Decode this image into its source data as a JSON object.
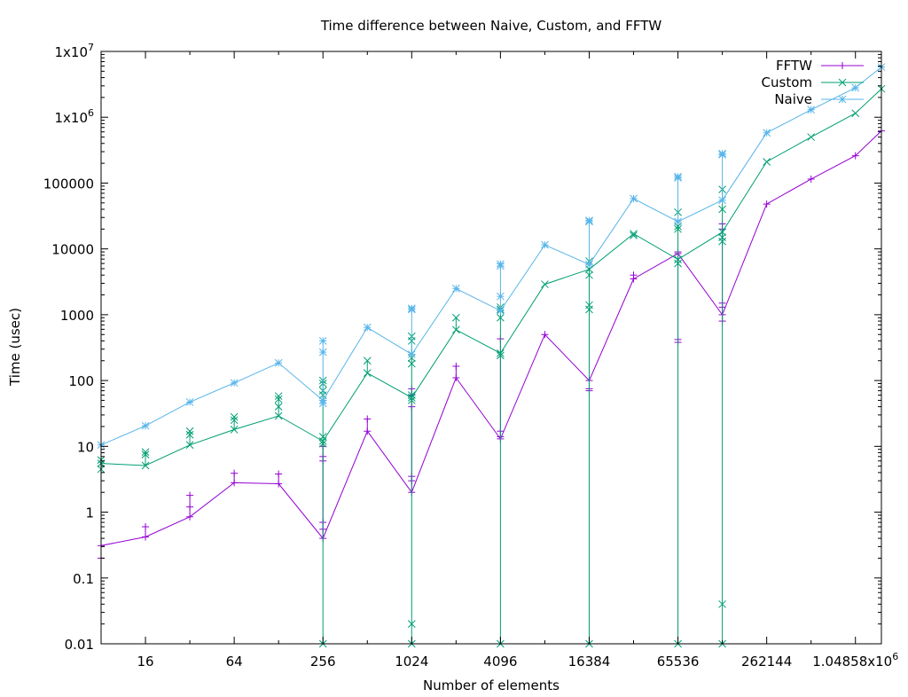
{
  "chart_data": {
    "type": "line",
    "title": "Time difference between Naive, Custom, and FFTW",
    "xlabel": "Number of elements",
    "ylabel": "Time (usec)",
    "x_scale": "log2",
    "y_scale": "log10",
    "xlim": [
      8,
      1572864
    ],
    "ylim": [
      0.01,
      10000000
    ],
    "x_ticks": [
      {
        "value": 16,
        "label": "16"
      },
      {
        "value": 64,
        "label": "64"
      },
      {
        "value": 256,
        "label": "256"
      },
      {
        "value": 1024,
        "label": "1024"
      },
      {
        "value": 4096,
        "label": "4096"
      },
      {
        "value": 16384,
        "label": "16384"
      },
      {
        "value": 65536,
        "label": "65536"
      },
      {
        "value": 262144,
        "label": "262144"
      },
      {
        "value": 1048576,
        "label": "1.04858x10",
        "sup": "6"
      }
    ],
    "y_ticks": [
      {
        "value": 0.01,
        "label": "0.01"
      },
      {
        "value": 0.1,
        "label": "0.1"
      },
      {
        "value": 1,
        "label": "1"
      },
      {
        "value": 10,
        "label": "10"
      },
      {
        "value": 100,
        "label": "100"
      },
      {
        "value": 1000,
        "label": "1000"
      },
      {
        "value": 10000,
        "label": "10000"
      },
      {
        "value": 100000,
        "label": "100000"
      },
      {
        "value": 1000000,
        "label": "1x10",
        "sup": "6"
      },
      {
        "value": 10000000,
        "label": "1x10",
        "sup": "7"
      }
    ],
    "grid": false,
    "legend_position": "top-right",
    "series": [
      {
        "name": "FFTW",
        "color": "#9400d3",
        "marker": "plus",
        "x": [
          8,
          16,
          32,
          64,
          128,
          256,
          512,
          1024,
          2048,
          4096,
          8192,
          16384,
          32768,
          65536,
          131072,
          262144,
          524288,
          1048576,
          1572864
        ],
        "y": [
          0.31,
          0.42,
          0.85,
          2.8,
          2.7,
          0.4,
          17,
          2.0,
          110,
          13,
          500,
          100,
          3500,
          8500,
          1000,
          48000,
          115000,
          260000,
          620000
        ],
        "scatter_points": [
          {
            "x": 8,
            "y": 0.2
          },
          {
            "x": 16,
            "y": 0.6
          },
          {
            "x": 32,
            "y": 1.2
          },
          {
            "x": 32,
            "y": 1.8
          },
          {
            "x": 64,
            "y": 3.9
          },
          {
            "x": 128,
            "y": 3.8
          },
          {
            "x": 256,
            "y": 0.55
          },
          {
            "x": 256,
            "y": 0.7
          },
          {
            "x": 256,
            "y": 6
          },
          {
            "x": 256,
            "y": 7
          },
          {
            "x": 256,
            "y": 10
          },
          {
            "x": 512,
            "y": 26
          },
          {
            "x": 1024,
            "y": 3
          },
          {
            "x": 1024,
            "y": 3.5
          },
          {
            "x": 1024,
            "y": 40
          },
          {
            "x": 1024,
            "y": 60
          },
          {
            "x": 1024,
            "y": 75
          },
          {
            "x": 2048,
            "y": 165
          },
          {
            "x": 4096,
            "y": 14
          },
          {
            "x": 4096,
            "y": 17
          },
          {
            "x": 4096,
            "y": 430
          },
          {
            "x": 16384,
            "y": 70
          },
          {
            "x": 16384,
            "y": 75
          },
          {
            "x": 32768,
            "y": 4000
          },
          {
            "x": 65536,
            "y": 380
          },
          {
            "x": 65536,
            "y": 420
          },
          {
            "x": 65536,
            "y": 9000
          },
          {
            "x": 131072,
            "y": 800
          },
          {
            "x": 131072,
            "y": 1300
          },
          {
            "x": 131072,
            "y": 1500
          },
          {
            "x": 131072,
            "y": 20000
          },
          {
            "x": 131072,
            "y": 24000
          }
        ]
      },
      {
        "name": "Custom",
        "color": "#009e73",
        "marker": "x",
        "x": [
          8,
          16,
          32,
          64,
          128,
          256,
          512,
          1024,
          2048,
          4096,
          8192,
          16384,
          32768,
          65536,
          131072,
          262144,
          524288,
          1048576,
          1572864
        ],
        "y": [
          5.5,
          5.1,
          10.5,
          18,
          29,
          12,
          130,
          55,
          590,
          260,
          2900,
          4900,
          17000,
          6900,
          18000,
          210000,
          500000,
          1150000,
          2700000
        ],
        "scatter_points": [
          {
            "x": 8,
            "y": 4.5
          },
          {
            "x": 8,
            "y": 6.2
          },
          {
            "x": 16,
            "y": 7.5
          },
          {
            "x": 16,
            "y": 8.2
          },
          {
            "x": 32,
            "y": 15
          },
          {
            "x": 32,
            "y": 17
          },
          {
            "x": 64,
            "y": 25
          },
          {
            "x": 64,
            "y": 28
          },
          {
            "x": 128,
            "y": 40
          },
          {
            "x": 128,
            "y": 52
          },
          {
            "x": 128,
            "y": 58
          },
          {
            "x": 256,
            "y": 0.01
          },
          {
            "x": 256,
            "y": 11
          },
          {
            "x": 256,
            "y": 14
          },
          {
            "x": 256,
            "y": 60
          },
          {
            "x": 256,
            "y": 70
          },
          {
            "x": 256,
            "y": 90
          },
          {
            "x": 256,
            "y": 100
          },
          {
            "x": 512,
            "y": 200
          },
          {
            "x": 1024,
            "y": 0.01
          },
          {
            "x": 1024,
            "y": 0.02
          },
          {
            "x": 1024,
            "y": 50
          },
          {
            "x": 1024,
            "y": 60
          },
          {
            "x": 1024,
            "y": 180
          },
          {
            "x": 1024,
            "y": 220
          },
          {
            "x": 1024,
            "y": 400
          },
          {
            "x": 1024,
            "y": 470
          },
          {
            "x": 2048,
            "y": 900
          },
          {
            "x": 4096,
            "y": 0.01
          },
          {
            "x": 4096,
            "y": 240
          },
          {
            "x": 4096,
            "y": 900
          },
          {
            "x": 4096,
            "y": 1200
          },
          {
            "x": 4096,
            "y": 1300
          },
          {
            "x": 16384,
            "y": 0.01
          },
          {
            "x": 16384,
            "y": 1200
          },
          {
            "x": 16384,
            "y": 1400
          },
          {
            "x": 16384,
            "y": 4000
          },
          {
            "x": 16384,
            "y": 6500
          },
          {
            "x": 32768,
            "y": 16000
          },
          {
            "x": 65536,
            "y": 0.01
          },
          {
            "x": 65536,
            "y": 6000
          },
          {
            "x": 65536,
            "y": 20000
          },
          {
            "x": 65536,
            "y": 22000
          },
          {
            "x": 65536,
            "y": 36000
          },
          {
            "x": 131072,
            "y": 0.01
          },
          {
            "x": 131072,
            "y": 0.04
          },
          {
            "x": 131072,
            "y": 13000
          },
          {
            "x": 131072,
            "y": 15000
          },
          {
            "x": 131072,
            "y": 40000
          },
          {
            "x": 131072,
            "y": 80000
          }
        ]
      },
      {
        "name": "Naive",
        "color": "#56b4e9",
        "marker": "star",
        "x": [
          8,
          16,
          32,
          64,
          128,
          256,
          512,
          1024,
          2048,
          4096,
          8192,
          16384,
          32768,
          65536,
          131072,
          262144,
          524288,
          1048576,
          1572864
        ],
        "y": [
          10.5,
          20.5,
          47,
          92,
          185,
          50,
          640,
          250,
          2500,
          1150,
          11500,
          5800,
          58000,
          26000,
          55000,
          580000,
          1300000,
          2800000,
          5800000
        ],
        "scatter_points": [
          {
            "x": 256,
            "y": 45
          },
          {
            "x": 256,
            "y": 270
          },
          {
            "x": 256,
            "y": 400
          },
          {
            "x": 1024,
            "y": 1200
          },
          {
            "x": 1024,
            "y": 1250
          },
          {
            "x": 4096,
            "y": 1900
          },
          {
            "x": 4096,
            "y": 5500
          },
          {
            "x": 4096,
            "y": 5900
          },
          {
            "x": 16384,
            "y": 26000
          },
          {
            "x": 16384,
            "y": 27000
          },
          {
            "x": 65536,
            "y": 120000
          },
          {
            "x": 65536,
            "y": 125000
          },
          {
            "x": 131072,
            "y": 270000
          },
          {
            "x": 131072,
            "y": 280000
          }
        ]
      }
    ]
  }
}
